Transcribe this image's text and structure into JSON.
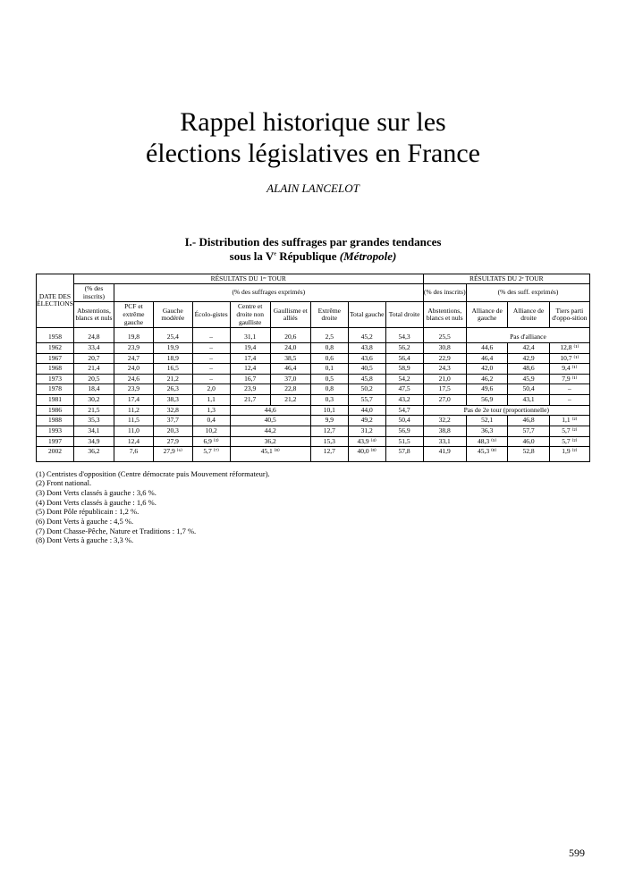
{
  "title_line1": "Rappel historique sur les",
  "title_line2": "élections législatives en France",
  "author": "ALAIN LANCELOT",
  "section_prefix": "I.- Distribution des suffrages par grandes tendances",
  "section_sub_a": "sous la V",
  "section_sub_sup": "e",
  "section_sub_b": " République ",
  "section_sub_ital": "(Métropole)",
  "headers": {
    "date": "DATE DES ÉLECTIONS",
    "r1": "RÉSULTATS DU 1ᵉʳ TOUR",
    "r2": "RÉSULTATS DU 2ᵉ TOUR",
    "pct_insc": "(% des inscrits)",
    "pct_exp": "(% des suffrages exprimés)",
    "pct_exp2": "(% des suff. exprimés)",
    "abst": "Abstentions, blancs et nuls",
    "pcf": "PCF et extrême gauche",
    "gm": "Gauche modérée",
    "eco": "Écolo-gistes",
    "cdng": "Centre et droite non gaulliste",
    "gaul": "Gaullisme et alliés",
    "exd": "Extrême droite",
    "tg": "Total gauche",
    "td": "Total droite",
    "ag": "Alliance de gauche",
    "ad": "Alliance de droite",
    "tpo": "Tiers parti d'oppo-sition"
  },
  "rows": [
    {
      "year": "1958",
      "c": [
        "24,8",
        "19,8",
        "25,4",
        "–",
        "31,1",
        "20,6",
        "2,5",
        "45,2",
        "54,3",
        "25,5",
        "",
        "",
        ""
      ],
      "merge_r2_text": "Pas d'alliance"
    },
    {
      "year": "1962",
      "c": [
        "33,4",
        "23,9",
        "19,9",
        "–",
        "19,4",
        "24,0",
        "0,8",
        "43,8",
        "56,2",
        "30,8",
        "44,6",
        "42,4",
        "12,8 ⁽¹⁾"
      ]
    },
    {
      "year": "1967",
      "c": [
        "20,7",
        "24,7",
        "18,9",
        "–",
        "17,4",
        "38,5",
        "0,6",
        "43,6",
        "56,4",
        "22,9",
        "46,4",
        "42,9",
        "10,7 ⁽¹⁾"
      ]
    },
    {
      "year": "1968",
      "c": [
        "21,4",
        "24,0",
        "16,5",
        "–",
        "12,4",
        "46,4",
        "0,1",
        "40,5",
        "58,9",
        "24,3",
        "42,0",
        "48,6",
        "9,4 ⁽¹⁾"
      ]
    },
    {
      "year": "1973",
      "c": [
        "20,5",
        "24,6",
        "21,2",
        "–",
        "16,7",
        "37,0",
        "0,5",
        "45,8",
        "54,2",
        "21,0",
        "46,2",
        "45,9",
        "7,9 ⁽¹⁾"
      ]
    },
    {
      "year": "1978",
      "c": [
        "18,4",
        "23,9",
        "26,3",
        "2,0",
        "23,9",
        "22,8",
        "0,8",
        "50,2",
        "47,5",
        "17,5",
        "49,6",
        "50,4",
        "–"
      ]
    },
    {
      "year": "1981",
      "c": [
        "30,2",
        "17,4",
        "38,3",
        "1,1",
        "21,7",
        "21,2",
        "0,3",
        "55,7",
        "43,2",
        "27,0",
        "56,9",
        "43,1",
        "–"
      ]
    },
    {
      "year": "1986",
      "c": [
        "21,5",
        "11,2",
        "32,8",
        "1,3",
        "",
        "",
        "10,1",
        "44,0",
        "54,7",
        "",
        "",
        "",
        ""
      ],
      "merge_cd": "44,6",
      "merge_r2_text": "Pas de 2e tour (proportionnelle)"
    },
    {
      "year": "1988",
      "c": [
        "35,3",
        "11,5",
        "37,7",
        "0,4",
        "",
        "",
        "9,9",
        "49,2",
        "50,4",
        "32,2",
        "52,1",
        "46,8",
        "1,1 ⁽²⁾"
      ],
      "merge_cd": "40,5"
    },
    {
      "year": "1993",
      "c": [
        "34,1",
        "11,0",
        "20,3",
        "10,2",
        "",
        "",
        "12,7",
        "31,2",
        "56,9",
        "38,8",
        "36,3",
        "57,7",
        "5,7 ⁽²⁾"
      ],
      "merge_cd": "44,2"
    },
    {
      "year": "1997",
      "c": [
        "34,9",
        "12,4",
        "27,9",
        "6,9 ⁽³⁾",
        "",
        "",
        "15,3",
        "43,9 ⁽⁴⁾",
        "51,5",
        "33,1",
        "48,3 ⁽⁵⁾",
        "46,0",
        "5,7 ⁽²⁾"
      ],
      "merge_cd": "36,2"
    },
    {
      "year": "2002",
      "c": [
        "36,2",
        "7,6",
        "27,9 ⁽⁶⁾",
        "5,7 ⁽⁷⁾",
        "",
        "",
        "12,7",
        "40,0 ⁽⁸⁾",
        "57,8",
        "41,9",
        "45,3 ⁽⁸⁾",
        "52,8",
        "1,9 ⁽²⁾"
      ],
      "merge_cd": "45,1 ⁽⁸⁾"
    }
  ],
  "footnotes": [
    "(1) Centristes d'opposition (Centre démocrate puis Mouvement réformateur).",
    "(2) Front national.",
    "(3) Dont Verts classés à gauche : 3,6 %.",
    "(4) Dont Verts classés à gauche : 1,6 %.",
    "(5) Dont Pôle républicain : 1,2 %.",
    "(6) Dont Verts à gauche : 4,5 %.",
    "(7) Dont Chasse-Pêche, Nature et Traditions : 1,7 %.",
    "(8) Dont Verts à gauche : 3,3 %."
  ],
  "page_number": "599",
  "colors": {
    "border": "#000000",
    "bg": "#ffffff"
  }
}
